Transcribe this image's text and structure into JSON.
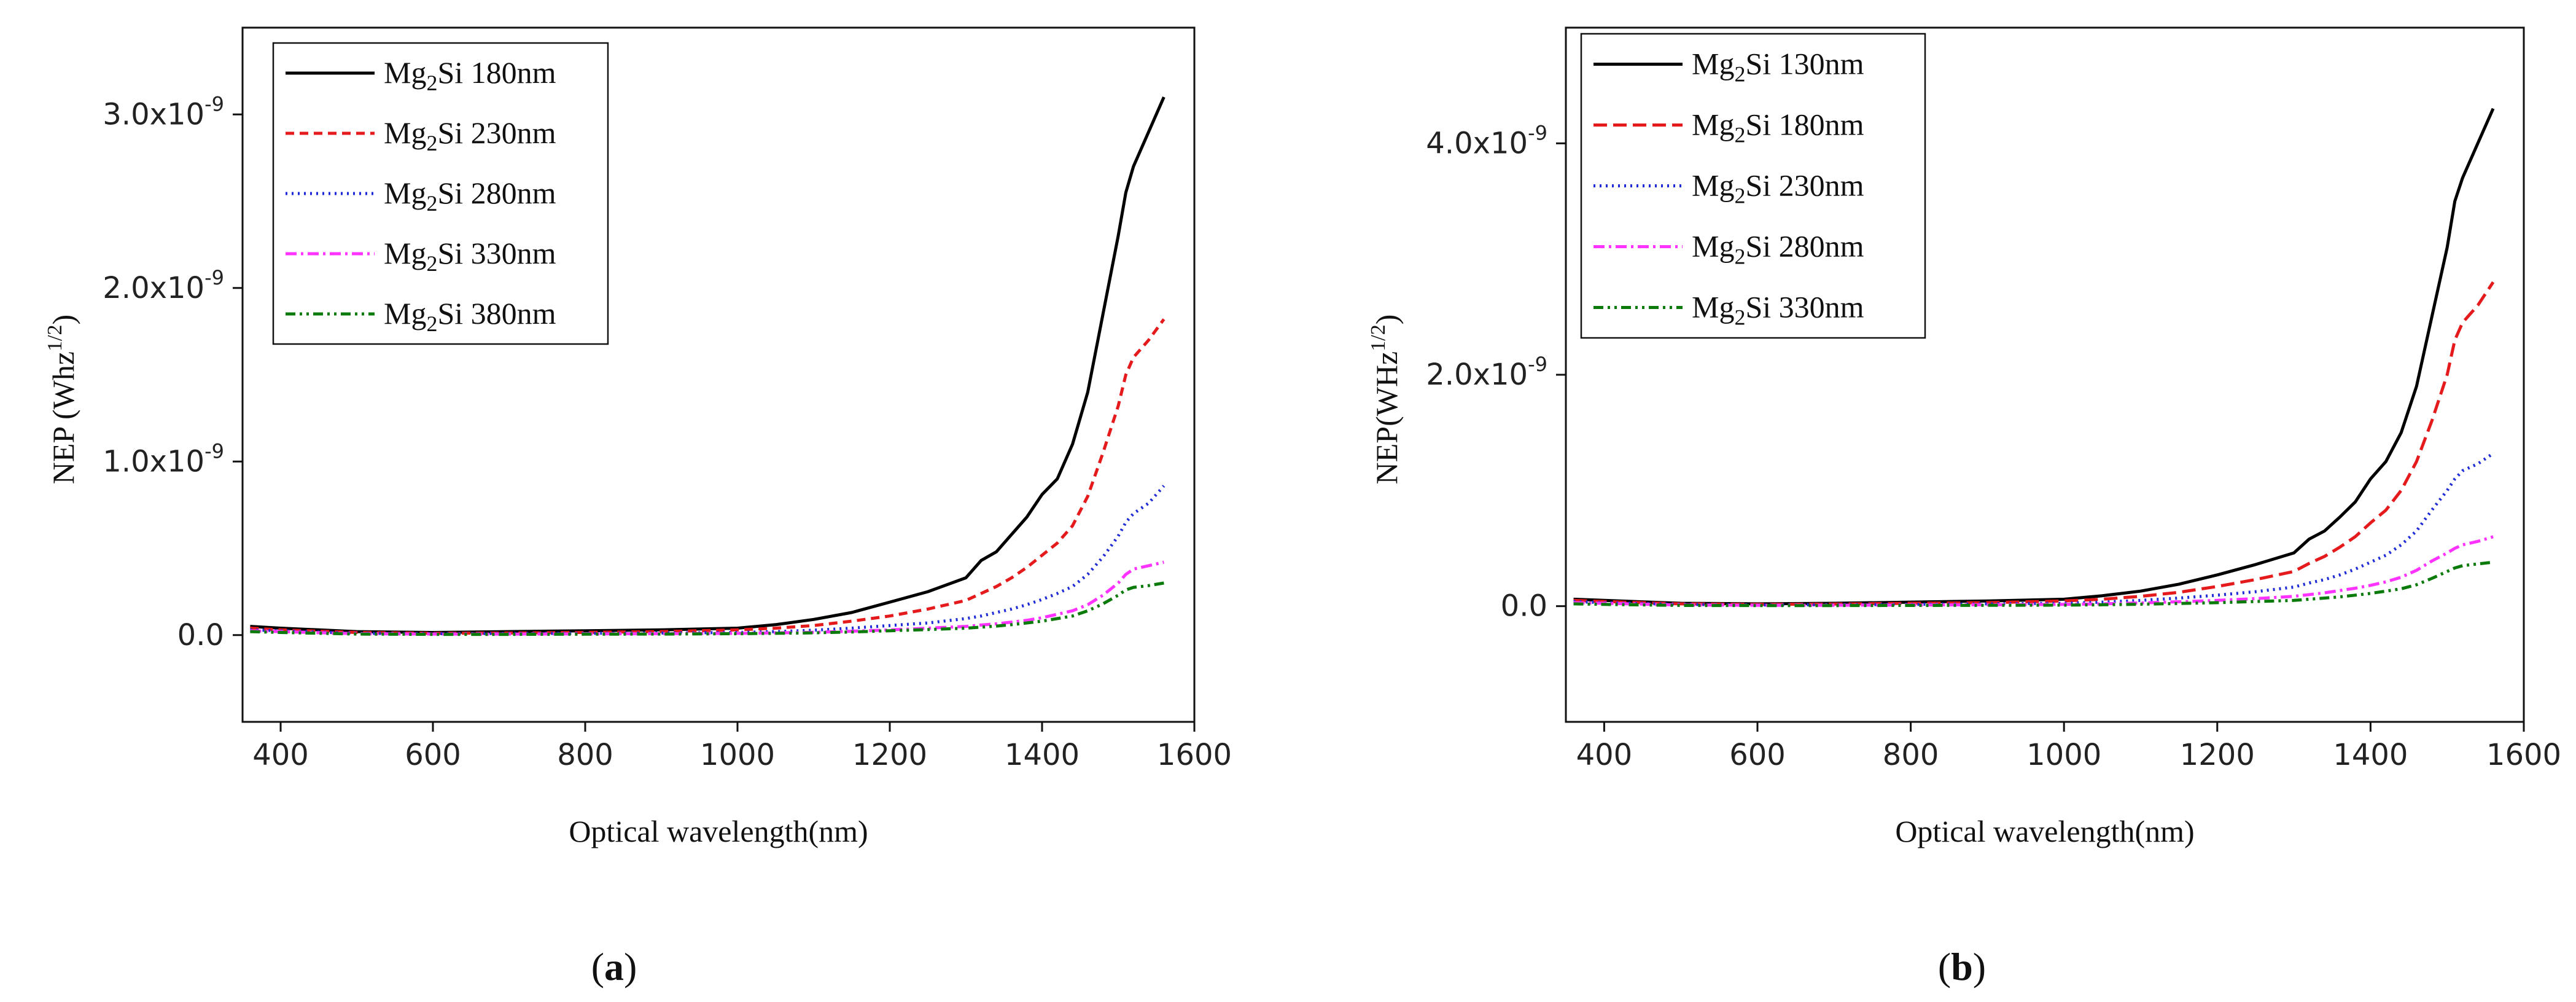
{
  "chart_data": [
    {
      "type": "line",
      "panel_label": "a",
      "xlabel": "Optical wavelength(nm)",
      "ylabel": "NEP (Whz",
      "ylabel_sup": "1/2",
      "ylabel_close": ")",
      "xlim": [
        350,
        1600
      ],
      "ylim": [
        -5e-10,
        3.5e-09
      ],
      "xticks": [
        400,
        600,
        800,
        1000,
        1200,
        1400,
        1600
      ],
      "xtick_labels": [
        "400",
        "600",
        "800",
        "1000",
        "1200",
        "1400",
        "1600"
      ],
      "yticks": [
        0,
        1e-09,
        2e-09,
        3e-09
      ],
      "ytick_labels": [
        {
          "mantissa": "0.0",
          "exp": ""
        },
        {
          "mantissa": "1.0x10",
          "exp": "-9"
        },
        {
          "mantissa": "2.0x10",
          "exp": "-9"
        },
        {
          "mantissa": "3.0x10",
          "exp": "-9"
        }
      ],
      "legend_position": "top-left",
      "x": [
        360,
        400,
        500,
        600,
        700,
        800,
        900,
        1000,
        1050,
        1100,
        1150,
        1200,
        1250,
        1300,
        1320,
        1340,
        1360,
        1380,
        1400,
        1420,
        1440,
        1460,
        1480,
        1500,
        1510,
        1520,
        1540,
        1560
      ],
      "series": [
        {
          "name_prefix": "Mg",
          "name_sub": "2",
          "name_suffix": "Si 180nm",
          "color": "#000000",
          "dash": "",
          "values": [
            5e-11,
            4e-11,
            2e-11,
            1.5e-11,
            2e-11,
            2.5e-11,
            3e-11,
            4e-11,
            6e-11,
            9e-11,
            1.3e-10,
            1.9e-10,
            2.5e-10,
            3.3e-10,
            4.3e-10,
            4.8e-10,
            5.8e-10,
            6.8e-10,
            8.1e-10,
            9e-10,
            1.1e-09,
            1.4e-09,
            1.85e-09,
            2.3e-09,
            2.55e-09,
            2.7e-09,
            2.9e-09,
            3.1e-09
          ]
        },
        {
          "name_prefix": "Mg",
          "name_sub": "2",
          "name_suffix": "Si 230nm",
          "color": "#e41a1c",
          "dash": "14,9",
          "values": [
            4e-11,
            3e-11,
            1.5e-11,
            1e-11,
            1.2e-11,
            1.5e-11,
            2e-11,
            3e-11,
            4e-11,
            5.5e-11,
            8e-11,
            1.1e-10,
            1.5e-10,
            2e-10,
            2.4e-10,
            2.8e-10,
            3.3e-10,
            3.9e-10,
            4.6e-10,
            5.3e-10,
            6.3e-10,
            8e-10,
            1.05e-09,
            1.32e-09,
            1.5e-09,
            1.6e-09,
            1.7e-09,
            1.82e-09
          ]
        },
        {
          "name_prefix": "Mg",
          "name_sub": "2",
          "name_suffix": "Si 280nm",
          "color": "#1f2bd6",
          "dash": "3,7",
          "values": [
            3e-11,
            2.5e-11,
            1e-11,
            8e-12,
            9e-12,
            1e-11,
            1.2e-11,
            1.5e-11,
            2e-11,
            2.8e-11,
            4e-11,
            5.5e-11,
            7e-11,
            9.5e-11,
            1.1e-10,
            1.3e-10,
            1.5e-10,
            1.75e-10,
            2.05e-10,
            2.4e-10,
            2.8e-10,
            3.5e-10,
            4.5e-10,
            5.7e-10,
            6.5e-10,
            7e-10,
            7.6e-10,
            8.6e-10
          ]
        },
        {
          "name_prefix": "Mg",
          "name_sub": "2",
          "name_suffix": "Si 330nm",
          "color": "#ff33ff",
          "dash": "18,7,4,7",
          "values": [
            2.5e-11,
            2e-11,
            8e-12,
            6e-12,
            6e-12,
            7e-12,
            8e-12,
            1e-11,
            1.3e-11,
            1.6e-11,
            2.2e-11,
            3e-11,
            4e-11,
            5e-11,
            5.8e-11,
            6.5e-11,
            7.5e-11,
            8.5e-11,
            1e-10,
            1.2e-10,
            1.4e-10,
            1.75e-10,
            2.3e-10,
            3e-10,
            3.5e-10,
            3.8e-10,
            4e-10,
            4.2e-10
          ]
        },
        {
          "name_prefix": "Mg",
          "name_sub": "2",
          "name_suffix": "Si 380nm",
          "color": "#0a7a0a",
          "dash": "16,7,4,7,4,7",
          "values": [
            2e-11,
            1.5e-11,
            6e-12,
            4e-12,
            4e-12,
            5e-12,
            6e-12,
            8e-12,
            1e-11,
            1.3e-11,
            1.8e-11,
            2.5e-11,
            3.2e-11,
            4e-11,
            4.6e-11,
            5.2e-11,
            6e-11,
            7e-11,
            8e-11,
            9.5e-11,
            1.1e-10,
            1.4e-10,
            1.8e-10,
            2.3e-10,
            2.6e-10,
            2.75e-10,
            2.85e-10,
            3e-10
          ]
        }
      ]
    },
    {
      "type": "line",
      "panel_label": "b",
      "xlabel": "Optical wavelength(nm)",
      "ylabel": "NEP(WHz",
      "ylabel_sup": "1/2",
      "ylabel_close": ")",
      "xlim": [
        350,
        1600
      ],
      "ylim": [
        -1e-09,
        5e-09
      ],
      "xticks": [
        400,
        600,
        800,
        1000,
        1200,
        1400,
        1600
      ],
      "xtick_labels": [
        "400",
        "600",
        "800",
        "1000",
        "1200",
        "1400",
        "1600"
      ],
      "yticks": [
        0,
        2e-09,
        4e-09
      ],
      "ytick_labels": [
        {
          "mantissa": "0.0",
          "exp": ""
        },
        {
          "mantissa": "2.0x10",
          "exp": "-9"
        },
        {
          "mantissa": "4.0x10",
          "exp": "-9"
        }
      ],
      "legend_position": "top-left",
      "x": [
        360,
        400,
        500,
        600,
        700,
        800,
        900,
        1000,
        1050,
        1100,
        1150,
        1200,
        1250,
        1300,
        1320,
        1340,
        1360,
        1380,
        1400,
        1420,
        1440,
        1460,
        1480,
        1500,
        1510,
        1520,
        1540,
        1560
      ],
      "series": [
        {
          "name_prefix": "Mg",
          "name_sub": "2",
          "name_suffix": "Si 130nm",
          "color": "#000000",
          "dash": "",
          "values": [
            6e-11,
            5e-11,
            2.5e-11,
            2e-11,
            2.5e-11,
            3.5e-11,
            4.5e-11,
            6e-11,
            9e-11,
            1.3e-10,
            1.9e-10,
            2.7e-10,
            3.6e-10,
            4.6e-10,
            5.8e-10,
            6.5e-10,
            7.7e-10,
            9e-10,
            1.1e-09,
            1.25e-09,
            1.5e-09,
            1.9e-09,
            2.5e-09,
            3.1e-09,
            3.5e-09,
            3.7e-09,
            4e-09,
            4.3e-09
          ]
        },
        {
          "name_prefix": "Mg",
          "name_sub": "2",
          "name_suffix": "Si 180nm",
          "color": "#e41a1c",
          "dash": "22,10",
          "values": [
            5e-11,
            4e-11,
            2e-11,
            1.5e-11,
            1.8e-11,
            2.5e-11,
            3e-11,
            4.5e-11,
            6e-11,
            8.5e-11,
            1.2e-10,
            1.7e-10,
            2.3e-10,
            3e-10,
            3.7e-10,
            4.3e-10,
            5.1e-10,
            6e-10,
            7.2e-10,
            8.3e-10,
            1e-09,
            1.25e-09,
            1.6e-09,
            2e-09,
            2.3e-09,
            2.45e-09,
            2.6e-09,
            2.8e-09
          ]
        },
        {
          "name_prefix": "Mg",
          "name_sub": "2",
          "name_suffix": "Si 230nm",
          "color": "#1f2bd6",
          "dash": "3,7",
          "values": [
            4e-11,
            3e-11,
            1.5e-11,
            1e-11,
            1.2e-11,
            1.5e-11,
            2e-11,
            2.5e-11,
            3.5e-11,
            5e-11,
            7e-11,
            9.5e-11,
            1.25e-10,
            1.65e-10,
            2e-10,
            2.3e-10,
            2.7e-10,
            3.2e-10,
            3.8e-10,
            4.4e-10,
            5.3e-10,
            6.5e-10,
            8.3e-10,
            1e-09,
            1.1e-09,
            1.17e-09,
            1.23e-09,
            1.32e-09
          ]
        },
        {
          "name_prefix": "Mg",
          "name_sub": "2",
          "name_suffix": "Si 280nm",
          "color": "#ff33ff",
          "dash": "18,7,4,7",
          "values": [
            3e-11,
            2.5e-11,
            1e-11,
            8e-12,
            8e-12,
            1e-11,
            1.2e-11,
            1.5e-11,
            2e-11,
            2.8e-11,
            3.8e-11,
            5e-11,
            6.5e-11,
            8.5e-11,
            1e-10,
            1.15e-10,
            1.35e-10,
            1.55e-10,
            1.8e-10,
            2.1e-10,
            2.5e-10,
            3.1e-10,
            3.9e-10,
            4.6e-10,
            5e-10,
            5.3e-10,
            5.6e-10,
            6e-10
          ]
        },
        {
          "name_prefix": "Mg",
          "name_sub": "2",
          "name_suffix": "Si 330nm",
          "color": "#0a7a0a",
          "dash": "16,7,4,7,4,7",
          "values": [
            2e-11,
            1.5e-11,
            6e-12,
            5e-12,
            5e-12,
            6e-12,
            7e-12,
            9e-12,
            1.2e-11,
            1.7e-11,
            2.3e-11,
            3e-11,
            4e-11,
            5e-11,
            6e-11,
            7e-11,
            8e-11,
            9.5e-11,
            1.1e-10,
            1.3e-10,
            1.5e-10,
            1.85e-10,
            2.4e-10,
            3e-10,
            3.3e-10,
            3.5e-10,
            3.65e-10,
            3.8e-10
          ]
        }
      ]
    }
  ]
}
